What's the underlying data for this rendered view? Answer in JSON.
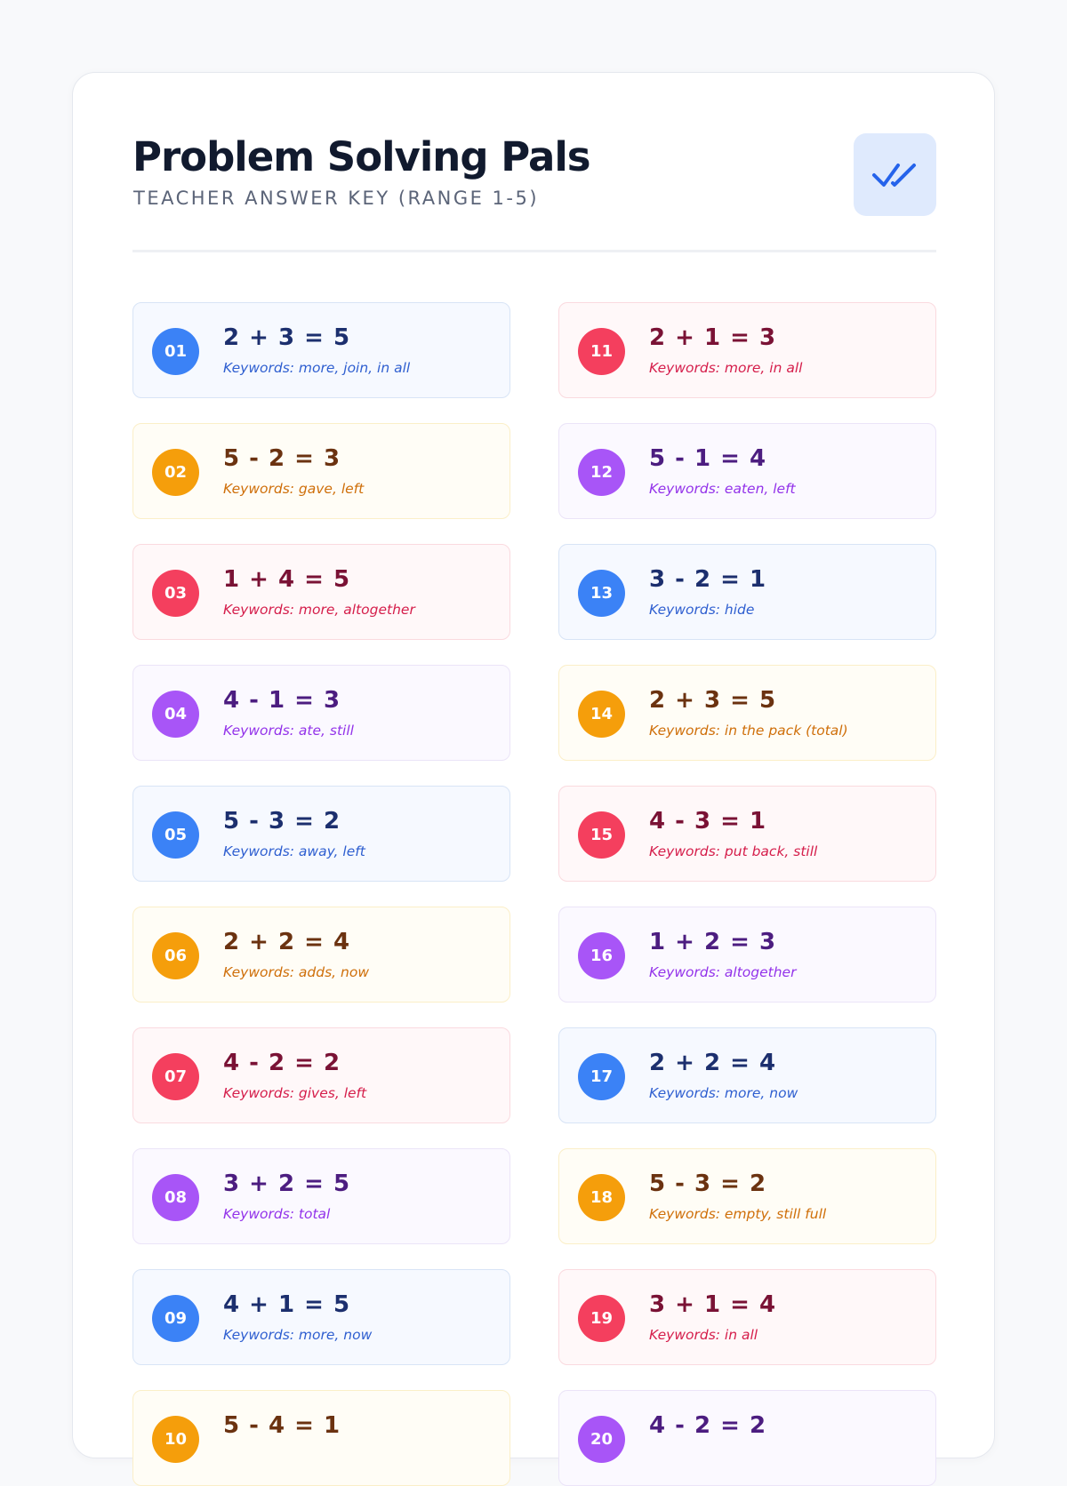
{
  "header": {
    "title": "Problem Solving Pals",
    "subtitle": "TEACHER ANSWER KEY (RANGE 1-5)",
    "badge_icon": "double-check-icon",
    "badge_color": "#2563eb"
  },
  "theme_colors": {
    "blue": "#3b82f6",
    "orange": "#f59e0b",
    "red": "#f43f5e",
    "purple": "#a855f7"
  },
  "problems": [
    {
      "number": "01",
      "equation": "2 + 3 = 5",
      "keywords": "Keywords: more, join, in all",
      "theme": "blue"
    },
    {
      "number": "11",
      "equation": "2 + 1 = 3",
      "keywords": "Keywords: more, in all",
      "theme": "red"
    },
    {
      "number": "02",
      "equation": "5 - 2 = 3",
      "keywords": "Keywords: gave, left",
      "theme": "orange"
    },
    {
      "number": "12",
      "equation": "5 - 1 = 4",
      "keywords": "Keywords: eaten, left",
      "theme": "purple"
    },
    {
      "number": "03",
      "equation": "1 + 4 = 5",
      "keywords": "Keywords: more, altogether",
      "theme": "red"
    },
    {
      "number": "13",
      "equation": "3 - 2 = 1",
      "keywords": "Keywords: hide",
      "theme": "blue"
    },
    {
      "number": "04",
      "equation": "4 - 1 = 3",
      "keywords": "Keywords: ate, still",
      "theme": "purple"
    },
    {
      "number": "14",
      "equation": "2 + 3 = 5",
      "keywords": "Keywords: in the pack (total)",
      "theme": "orange"
    },
    {
      "number": "05",
      "equation": "5 - 3 = 2",
      "keywords": "Keywords: away, left",
      "theme": "blue"
    },
    {
      "number": "15",
      "equation": "4 - 3 = 1",
      "keywords": "Keywords: put back, still",
      "theme": "red"
    },
    {
      "number": "06",
      "equation": "2 + 2 = 4",
      "keywords": "Keywords: adds, now",
      "theme": "orange"
    },
    {
      "number": "16",
      "equation": "1 + 2 = 3",
      "keywords": "Keywords: altogether",
      "theme": "purple"
    },
    {
      "number": "07",
      "equation": "4 - 2 = 2",
      "keywords": "Keywords: gives, left",
      "theme": "red"
    },
    {
      "number": "17",
      "equation": "2 + 2 = 4",
      "keywords": "Keywords: more, now",
      "theme": "blue"
    },
    {
      "number": "08",
      "equation": "3 + 2 = 5",
      "keywords": "Keywords: total",
      "theme": "purple"
    },
    {
      "number": "18",
      "equation": "5 - 3 = 2",
      "keywords": "Keywords: empty, still full",
      "theme": "orange"
    },
    {
      "number": "09",
      "equation": "4 + 1 = 5",
      "keywords": "Keywords: more, now",
      "theme": "blue"
    },
    {
      "number": "19",
      "equation": "3 + 1 = 4",
      "keywords": "Keywords: in all",
      "theme": "red"
    },
    {
      "number": "10",
      "equation": "5 - 4 = 1",
      "keywords": "",
      "theme": "orange"
    },
    {
      "number": "20",
      "equation": "4 - 2 = 2",
      "keywords": "",
      "theme": "purple"
    }
  ]
}
